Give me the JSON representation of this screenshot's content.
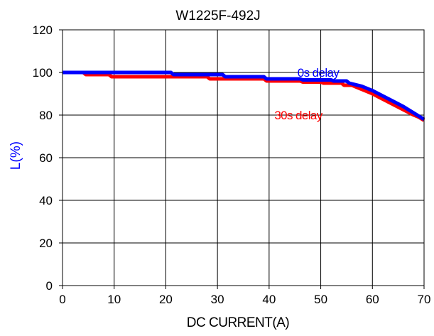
{
  "chart_data": {
    "type": "line",
    "title": "W1225F-492J",
    "xlabel": "DC CURRENT(A)",
    "ylabel": "L(%)",
    "xlim": [
      0,
      70
    ],
    "ylim": [
      0,
      120
    ],
    "xticks": [
      "0",
      "10",
      "20",
      "30",
      "40",
      "50",
      "60",
      "70"
    ],
    "yticks": [
      "0",
      "20",
      "40",
      "60",
      "80",
      "100",
      "120"
    ],
    "grid": true,
    "colors": {
      "title": "#000000",
      "ylabel": "#0000ff",
      "axis": "#000000"
    },
    "series": [
      {
        "name": "30s delay",
        "color": "#ff0000",
        "x": [
          0,
          4,
          4.5,
          9,
          9.5,
          21,
          21.5,
          28,
          28.5,
          39,
          39.5,
          46,
          46.5,
          50,
          50.5,
          54,
          54.5,
          56,
          58,
          60,
          62,
          64,
          66,
          68,
          69,
          70
        ],
        "y": [
          100,
          100,
          99,
          99,
          98,
          98,
          98,
          98,
          97,
          97,
          96,
          96,
          95.5,
          95.5,
          95,
          95,
          94,
          94,
          92,
          90,
          87.5,
          85,
          82.5,
          80,
          79,
          77.5
        ]
      },
      {
        "name": "0s delay",
        "color": "#0000ff",
        "x": [
          0,
          21,
          21.5,
          31,
          31.5,
          39,
          39.5,
          46,
          46.5,
          52,
          52.5,
          55,
          55.5,
          58,
          60,
          62,
          64,
          66,
          68,
          69,
          70
        ],
        "y": [
          100,
          100,
          99,
          99,
          98,
          98,
          97,
          97,
          96.5,
          96.5,
          96,
          96,
          95,
          93.5,
          91.5,
          89,
          86.5,
          84,
          81,
          79.5,
          78
        ]
      }
    ]
  }
}
